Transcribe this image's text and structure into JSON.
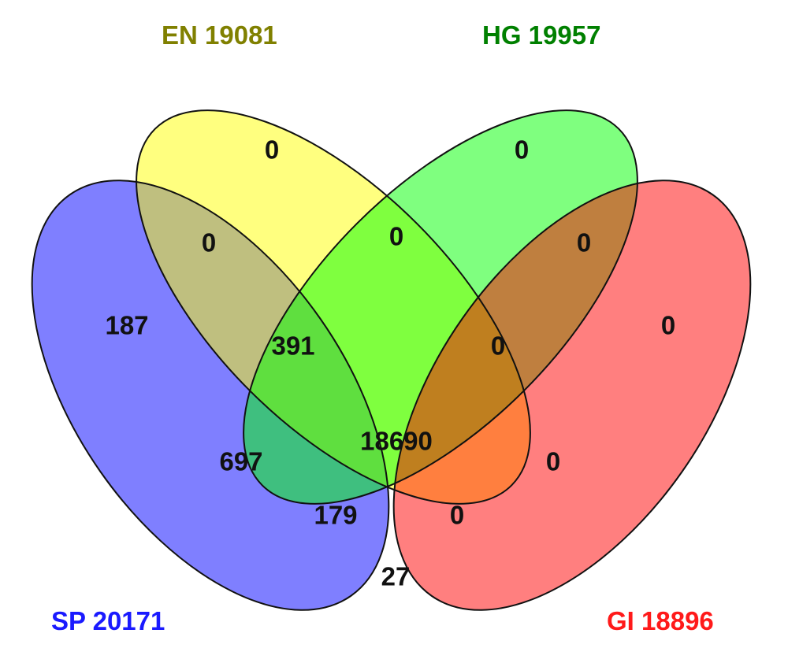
{
  "sets": [
    {
      "id": "SP",
      "label": "SP 20171",
      "color": "#0000ff",
      "text_color": "#1a1aff"
    },
    {
      "id": "EN",
      "label": "EN 19081",
      "color": "#ffff00",
      "text_color": "#808000"
    },
    {
      "id": "HG",
      "label": "HG 19957",
      "color": "#00ff00",
      "text_color": "#008000"
    },
    {
      "id": "GI",
      "label": "GI 18896",
      "color": "#ff0000",
      "text_color": "#ff1a1a"
    }
  ],
  "regions": {
    "en_only": "0",
    "hg_only": "0",
    "sp_en": "0",
    "en_hg": "0",
    "hg_gi": "0",
    "sp_only": "187",
    "sp_en_hg": "391",
    "en_hg_gi": "0",
    "gi_only": "0",
    "all_four": "18690",
    "sp_hg": "697",
    "en_gi": "0",
    "sp_hg_gi": "179",
    "sp_en_gi": "0",
    "sp_gi": "27"
  }
}
